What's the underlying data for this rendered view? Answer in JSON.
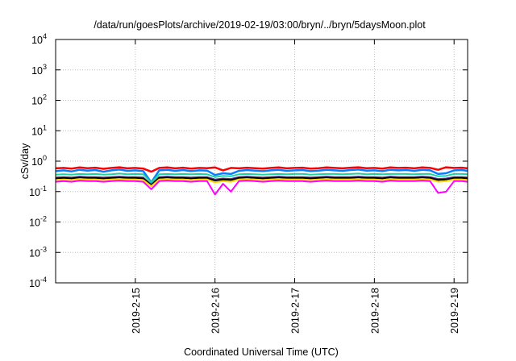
{
  "chart_data": {
    "type": "line",
    "title": "/data/run/goesPlots/archive/2019-02-19/03:00/bryn/../bryn/5daysMoon.plot",
    "xlabel": "Coordinated Universal Time (UTC)",
    "ylabel": "cSv/day",
    "yscale": "log",
    "ylim": [
      0.0001,
      10000
    ],
    "y_ticks": [
      {
        "exp": "4",
        "value": 10000
      },
      {
        "exp": "3",
        "value": 1000
      },
      {
        "exp": "2",
        "value": 100
      },
      {
        "exp": "1",
        "value": 10
      },
      {
        "exp": "0",
        "value": 1
      },
      {
        "exp": "-1",
        "value": 0.1
      },
      {
        "exp": "-2",
        "value": 0.01
      },
      {
        "exp": "-3",
        "value": 0.001
      },
      {
        "exp": "-4",
        "value": 0.0001
      }
    ],
    "y_tick_base": "10",
    "x_unit": "days since 2019-02-14 00:00 UTC",
    "xlim": [
      0,
      5.17
    ],
    "x_ticks": [
      {
        "label": "2019-2-15",
        "value": 1
      },
      {
        "label": "2019-2-16",
        "value": 2
      },
      {
        "label": "2019-2-17",
        "value": 3
      },
      {
        "label": "2019-2-18",
        "value": 4
      },
      {
        "label": "2019-2-19",
        "value": 5
      }
    ],
    "grid": true,
    "x_step": 0.1,
    "series": [
      {
        "name": "red",
        "color": "#ff0000",
        "values": [
          0.58,
          0.6,
          0.57,
          0.62,
          0.59,
          0.61,
          0.56,
          0.6,
          0.63,
          0.58,
          0.6,
          0.57,
          0.45,
          0.6,
          0.62,
          0.58,
          0.61,
          0.57,
          0.6,
          0.59,
          0.62,
          0.5,
          0.6,
          0.58,
          0.61,
          0.59,
          0.57,
          0.6,
          0.62,
          0.58,
          0.6,
          0.61,
          0.57,
          0.59,
          0.62,
          0.6,
          0.58,
          0.61,
          0.63,
          0.59,
          0.6,
          0.57,
          0.62,
          0.6,
          0.61,
          0.58,
          0.62,
          0.6,
          0.52,
          0.63,
          0.6,
          0.61,
          0.58
        ]
      },
      {
        "name": "blue",
        "color": "#0a7cff",
        "values": [
          0.47,
          0.5,
          0.46,
          0.52,
          0.49,
          0.51,
          0.45,
          0.5,
          0.53,
          0.48,
          0.5,
          0.47,
          0.2,
          0.5,
          0.52,
          0.48,
          0.51,
          0.47,
          0.5,
          0.49,
          0.35,
          0.4,
          0.38,
          0.48,
          0.51,
          0.49,
          0.47,
          0.5,
          0.52,
          0.48,
          0.5,
          0.51,
          0.47,
          0.49,
          0.52,
          0.5,
          0.48,
          0.51,
          0.53,
          0.49,
          0.5,
          0.47,
          0.52,
          0.5,
          0.51,
          0.48,
          0.52,
          0.5,
          0.38,
          0.4,
          0.5,
          0.51,
          0.48
        ]
      },
      {
        "name": "teal",
        "color": "#1ed2a0",
        "values": [
          0.36,
          0.37,
          0.36,
          0.38,
          0.37,
          0.38,
          0.36,
          0.37,
          0.39,
          0.37,
          0.38,
          0.37,
          0.2,
          0.37,
          0.38,
          0.37,
          0.38,
          0.37,
          0.38,
          0.37,
          0.3,
          0.33,
          0.32,
          0.37,
          0.38,
          0.37,
          0.36,
          0.37,
          0.38,
          0.37,
          0.38,
          0.38,
          0.36,
          0.37,
          0.38,
          0.38,
          0.37,
          0.38,
          0.39,
          0.37,
          0.38,
          0.37,
          0.38,
          0.38,
          0.38,
          0.37,
          0.38,
          0.38,
          0.32,
          0.33,
          0.38,
          0.38,
          0.37
        ]
      },
      {
        "name": "purple",
        "color": "#5a2d9c",
        "values": [
          0.29,
          0.3,
          0.29,
          0.31,
          0.3,
          0.3,
          0.29,
          0.3,
          0.31,
          0.3,
          0.3,
          0.29,
          0.17,
          0.3,
          0.31,
          0.3,
          0.3,
          0.29,
          0.3,
          0.3,
          0.25,
          0.27,
          0.26,
          0.3,
          0.31,
          0.3,
          0.29,
          0.3,
          0.31,
          0.3,
          0.3,
          0.3,
          0.29,
          0.3,
          0.31,
          0.3,
          0.3,
          0.3,
          0.31,
          0.3,
          0.3,
          0.29,
          0.31,
          0.3,
          0.3,
          0.3,
          0.31,
          0.3,
          0.26,
          0.27,
          0.3,
          0.3,
          0.29
        ]
      },
      {
        "name": "black",
        "color": "#000000",
        "values": [
          0.27,
          0.28,
          0.27,
          0.29,
          0.28,
          0.28,
          0.27,
          0.28,
          0.29,
          0.28,
          0.28,
          0.27,
          0.16,
          0.28,
          0.29,
          0.28,
          0.28,
          0.27,
          0.28,
          0.28,
          0.23,
          0.25,
          0.24,
          0.28,
          0.29,
          0.28,
          0.27,
          0.28,
          0.29,
          0.28,
          0.28,
          0.28,
          0.27,
          0.28,
          0.29,
          0.28,
          0.28,
          0.28,
          0.29,
          0.28,
          0.28,
          0.27,
          0.29,
          0.28,
          0.28,
          0.28,
          0.29,
          0.28,
          0.24,
          0.25,
          0.28,
          0.28,
          0.27
        ]
      },
      {
        "name": "yellow",
        "color": "#ffd700",
        "values": [
          0.24,
          0.25,
          0.24,
          0.26,
          0.25,
          0.25,
          0.24,
          0.25,
          0.26,
          0.25,
          0.25,
          0.24,
          0.15,
          0.25,
          0.26,
          0.25,
          0.25,
          0.24,
          0.25,
          0.25,
          0.2,
          0.22,
          0.21,
          0.25,
          0.26,
          0.25,
          0.24,
          0.25,
          0.26,
          0.25,
          0.25,
          0.25,
          0.24,
          0.25,
          0.26,
          0.25,
          0.25,
          0.25,
          0.26,
          0.25,
          0.25,
          0.24,
          0.26,
          0.25,
          0.25,
          0.25,
          0.26,
          0.25,
          0.21,
          0.22,
          0.25,
          0.25,
          0.24
        ]
      },
      {
        "name": "magenta",
        "color": "#ff00ff",
        "values": [
          0.21,
          0.22,
          0.21,
          0.23,
          0.22,
          0.22,
          0.21,
          0.22,
          0.23,
          0.22,
          0.22,
          0.21,
          0.12,
          0.22,
          0.23,
          0.22,
          0.22,
          0.21,
          0.22,
          0.22,
          0.08,
          0.18,
          0.1,
          0.22,
          0.23,
          0.22,
          0.21,
          0.22,
          0.23,
          0.22,
          0.22,
          0.22,
          0.21,
          0.22,
          0.23,
          0.22,
          0.22,
          0.22,
          0.23,
          0.22,
          0.22,
          0.21,
          0.23,
          0.22,
          0.22,
          0.22,
          0.23,
          0.22,
          0.09,
          0.1,
          0.22,
          0.22,
          0.21
        ]
      }
    ]
  }
}
